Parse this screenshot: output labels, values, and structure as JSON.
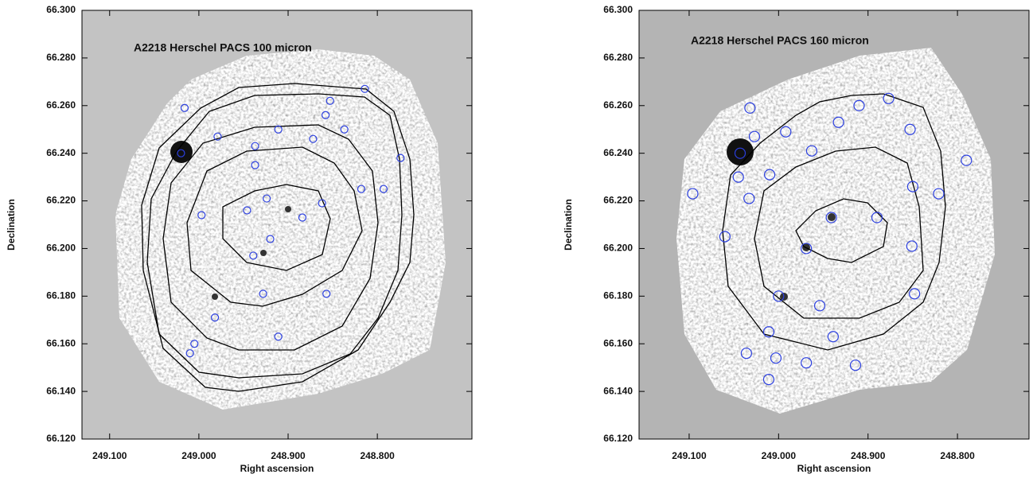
{
  "chart_data": [
    {
      "type": "scatter",
      "title": "A2218 Herschel PACS 100 micron",
      "x_label": "Right ascension",
      "y_label": "Declination",
      "xlim": [
        249.131,
        248.694
      ],
      "ylim": [
        66.12,
        66.3
      ],
      "xticks": [
        {
          "value": 249.1,
          "label": "249.100"
        },
        {
          "value": 249.0,
          "label": "249.000"
        },
        {
          "value": 248.9,
          "label": "248.900"
        },
        {
          "value": 248.8,
          "label": "248.800"
        }
      ],
      "yticks": [
        {
          "value": 66.12,
          "label": "66.120"
        },
        {
          "value": 66.14,
          "label": "66.140"
        },
        {
          "value": 66.16,
          "label": "66.160"
        },
        {
          "value": 66.18,
          "label": "66.180"
        },
        {
          "value": 66.2,
          "label": "66.200"
        },
        {
          "value": 66.22,
          "label": "66.220"
        },
        {
          "value": 66.24,
          "label": "66.240"
        },
        {
          "value": 66.26,
          "label": "66.260"
        },
        {
          "value": 66.28,
          "label": "66.280"
        },
        {
          "value": 66.3,
          "label": "66.300"
        }
      ],
      "color": "#2b3fe0",
      "x": [
        249.016,
        249.02,
        248.979,
        248.937,
        248.937,
        248.911,
        248.872,
        248.858,
        248.837,
        248.814,
        248.853,
        248.774,
        248.793,
        248.818,
        248.862,
        248.884,
        248.924,
        248.946,
        248.997,
        248.982,
        248.928,
        248.911,
        249.005,
        249.01,
        248.939,
        248.92,
        248.857
      ],
      "values": [
        66.259,
        66.24,
        66.247,
        66.243,
        66.235,
        66.25,
        66.246,
        66.256,
        66.25,
        66.267,
        66.262,
        66.238,
        66.225,
        66.225,
        66.219,
        66.213,
        66.221,
        66.216,
        66.214,
        66.171,
        66.181,
        66.163,
        66.16,
        66.156,
        66.197,
        66.204,
        66.181
      ]
    },
    {
      "type": "scatter",
      "title": "A2218 Herschel PACS 160 micron",
      "x_label": "Right ascension",
      "y_label": "Declination",
      "xlim": [
        249.156,
        248.72
      ],
      "ylim": [
        66.12,
        66.3
      ],
      "xticks": [
        {
          "value": 249.1,
          "label": "249.100"
        },
        {
          "value": 249.0,
          "label": "249.000"
        },
        {
          "value": 248.9,
          "label": "248.900"
        },
        {
          "value": 248.8,
          "label": "248.800"
        }
      ],
      "yticks": [
        {
          "value": 66.12,
          "label": "66.120"
        },
        {
          "value": 66.14,
          "label": "66.140"
        },
        {
          "value": 66.16,
          "label": "66.160"
        },
        {
          "value": 66.18,
          "label": "66.180"
        },
        {
          "value": 66.2,
          "label": "66.200"
        },
        {
          "value": 66.22,
          "label": "66.220"
        },
        {
          "value": 66.24,
          "label": "66.240"
        },
        {
          "value": 66.26,
          "label": "66.260"
        },
        {
          "value": 66.28,
          "label": "66.280"
        },
        {
          "value": 66.3,
          "label": "66.300"
        }
      ],
      "color": "#2b3fe0",
      "x": [
        249.043,
        249.032,
        249.027,
        249.045,
        249.096,
        249.06,
        249.033,
        249.01,
        248.992,
        248.963,
        248.933,
        248.91,
        248.877,
        248.853,
        248.821,
        248.79,
        248.85,
        248.89,
        248.941,
        248.969,
        248.851,
        248.848,
        249.0,
        248.954,
        248.939,
        249.011,
        249.036,
        249.003,
        248.914,
        249.011,
        248.969
      ],
      "values": [
        66.24,
        66.259,
        66.247,
        66.23,
        66.223,
        66.205,
        66.221,
        66.231,
        66.249,
        66.241,
        66.253,
        66.26,
        66.263,
        66.25,
        66.223,
        66.237,
        66.226,
        66.213,
        66.213,
        66.2,
        66.201,
        66.181,
        66.18,
        66.176,
        66.163,
        66.165,
        66.156,
        66.154,
        66.151,
        66.145,
        66.152
      ]
    }
  ]
}
